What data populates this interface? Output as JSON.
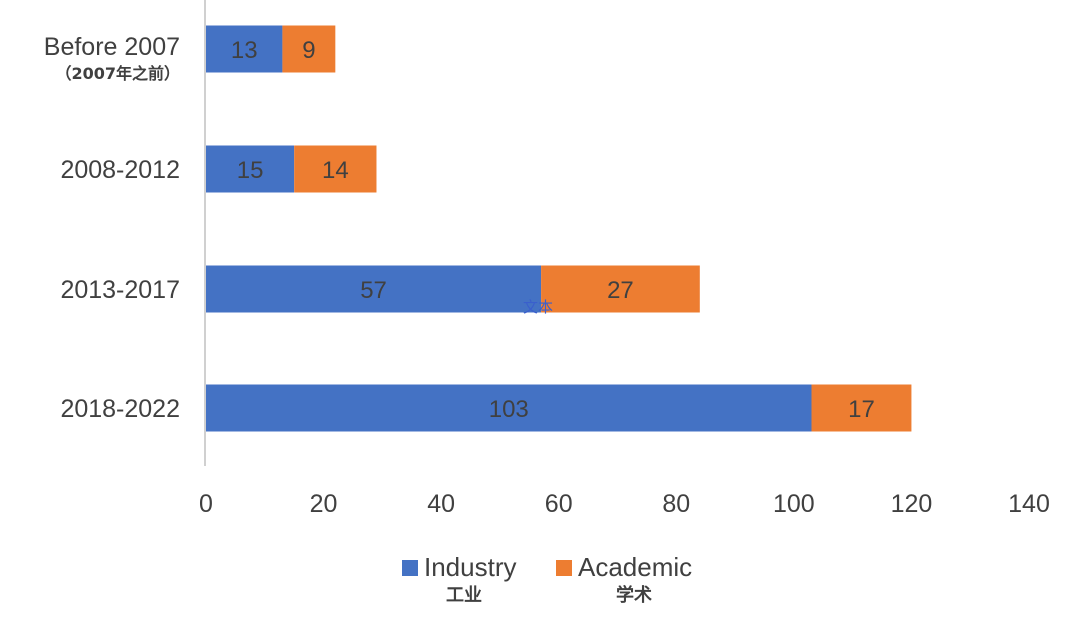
{
  "chart_data": {
    "type": "bar",
    "orientation": "horizontal",
    "stacked": true,
    "categories": [
      "Before 2007",
      "2008-2012",
      "2013-2017",
      "2018-2022"
    ],
    "category_sublabels": [
      "（2007年之前）",
      "",
      "",
      ""
    ],
    "series": [
      {
        "name": "Industry",
        "name_sub": "工业",
        "color": "#4472c4",
        "values": [
          13,
          15,
          57,
          103
        ]
      },
      {
        "name": "Academic",
        "name_sub": "学术",
        "color": "#ed7d31",
        "values": [
          9,
          14,
          27,
          17
        ]
      }
    ],
    "xlim": [
      0,
      140
    ],
    "xticks": [
      0,
      20,
      40,
      60,
      80,
      100,
      120,
      140
    ],
    "grid": false,
    "legend_position": "bottom",
    "annotation": "文本",
    "title": "",
    "xlabel": "",
    "ylabel": ""
  }
}
